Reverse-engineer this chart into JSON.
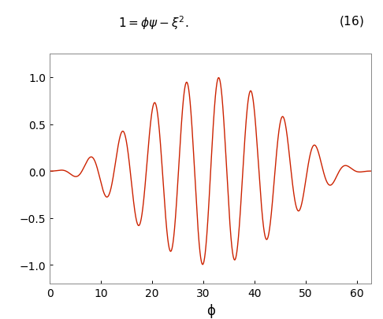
{
  "N": 10,
  "a0": 1.0,
  "omega": 1.0,
  "phi_min": 0,
  "phi_max": 62.8318530718,
  "phi_label": "ϕ",
  "ylabel_ticks": [
    -1,
    -0.5,
    0,
    0.5,
    1
  ],
  "xticks": [
    0,
    10,
    20,
    30,
    40,
    50,
    60
  ],
  "line_color": "#cc2200",
  "line_width": 1.0,
  "background_color": "#ffffff",
  "ylim": [
    -1.2,
    1.25
  ],
  "xlim": [
    0,
    62.8318530718
  ],
  "spine_color": "#888888",
  "tick_label_fontsize": 10,
  "xlabel_fontsize": 12
}
